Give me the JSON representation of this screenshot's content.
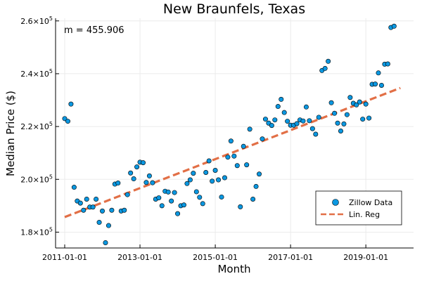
{
  "chart_data": {
    "type": "scatter",
    "title": "New Braunfels, Texas",
    "xlabel": "Month",
    "ylabel": "Median Price ($)",
    "annotation": "m = 455.906",
    "x_start": "2011-01",
    "x_end_month_index": 108,
    "xticks": [
      {
        "label": "2011-01-01",
        "month": 0
      },
      {
        "label": "2013-01-01",
        "month": 24
      },
      {
        "label": "2015-01-01",
        "month": 48
      },
      {
        "label": "2017-01-01",
        "month": 72
      },
      {
        "label": "2019-01-01",
        "month": 96
      }
    ],
    "ylim": [
      174000,
      261000
    ],
    "yticks": [
      {
        "value": 180000,
        "mantissa": "1.8",
        "exp": "5"
      },
      {
        "value": 200000,
        "mantissa": "2.0",
        "exp": "5"
      },
      {
        "value": 220000,
        "mantissa": "2.2",
        "exp": "5"
      },
      {
        "value": 240000,
        "mantissa": "2.4",
        "exp": "5"
      },
      {
        "value": 260000,
        "mantissa": "2.6",
        "exp": "5"
      }
    ],
    "grid": true,
    "legend_position": "bottom-right",
    "series": [
      {
        "name": "Zillow Data",
        "kind": "scatter",
        "color": "#0b97e0",
        "x": [
          "2011-01",
          "2011-02",
          "2011-03",
          "2011-04",
          "2011-05",
          "2011-06",
          "2011-07",
          "2011-08",
          "2011-09",
          "2011-10",
          "2011-11",
          "2011-12",
          "2012-01",
          "2012-02",
          "2012-03",
          "2012-04",
          "2012-05",
          "2012-06",
          "2012-07",
          "2012-08",
          "2012-09",
          "2012-10",
          "2012-11",
          "2012-12",
          "2013-01",
          "2013-02",
          "2013-03",
          "2013-04",
          "2013-05",
          "2013-06",
          "2013-07",
          "2013-08",
          "2013-09",
          "2013-10",
          "2013-11",
          "2013-12",
          "2014-01",
          "2014-02",
          "2014-03",
          "2014-04",
          "2014-05",
          "2014-06",
          "2014-07",
          "2014-08",
          "2014-09",
          "2014-10",
          "2014-11",
          "2014-12",
          "2015-01",
          "2015-02",
          "2015-03",
          "2015-04",
          "2015-05",
          "2015-06",
          "2015-07",
          "2015-08",
          "2015-09",
          "2015-10",
          "2015-11",
          "2015-12",
          "2016-01",
          "2016-02",
          "2016-03",
          "2016-04",
          "2016-05",
          "2016-06",
          "2016-07",
          "2016-08",
          "2016-09",
          "2016-10",
          "2016-11",
          "2016-12",
          "2017-01",
          "2017-02",
          "2017-03",
          "2017-04",
          "2017-05",
          "2017-06",
          "2017-07",
          "2017-08",
          "2017-09",
          "2017-10",
          "2017-11",
          "2017-12",
          "2018-01",
          "2018-02",
          "2018-03",
          "2018-04",
          "2018-05",
          "2018-06",
          "2018-07",
          "2018-08",
          "2018-09",
          "2018-10",
          "2018-11",
          "2018-12",
          "2019-01",
          "2019-02",
          "2019-03",
          "2019-04",
          "2019-05",
          "2019-06",
          "2019-07",
          "2019-08",
          "2019-09",
          "2019-10",
          "2019-11",
          "2019-12"
        ],
        "y": [
          223000,
          222000,
          228500,
          197000,
          191800,
          191000,
          188300,
          192500,
          189500,
          189500,
          192500,
          183700,
          188000,
          176000,
          182500,
          188300,
          198200,
          198600,
          188000,
          188300,
          194200,
          202400,
          200200,
          204700,
          206500,
          206300,
          198800,
          201300,
          198700,
          192500,
          193000,
          190000,
          195500,
          195200,
          191800,
          195000,
          187000,
          190000,
          190300,
          198400,
          199800,
          202300,
          195300,
          193200,
          190800,
          202600,
          207000,
          199300,
          203400,
          199800,
          193300,
          200600,
          208400,
          214500,
          208800,
          205200,
          189600,
          212500,
          205500,
          219000,
          192500,
          197300,
          202000,
          215300,
          222800,
          221300,
          220400,
          222500,
          227600,
          230300,
          225300,
          222000,
          220500,
          220500,
          221100,
          222500,
          222100,
          227400,
          222200,
          219200,
          217100,
          223500,
          241200,
          242000,
          244700,
          229000,
          225000,
          221300,
          218300,
          221000,
          224500,
          231000,
          228800,
          228200,
          229300,
          222800,
          228500,
          223200,
          236000,
          236100,
          240300,
          235600,
          243600,
          243700,
          257500,
          258000,
          null,
          null
        ]
      },
      {
        "name": "Lin. Reg",
        "kind": "line",
        "color": "#e26f46",
        "slope_per_month": 455.906,
        "x": [
          "2011-01",
          "2019-12"
        ],
        "y": [
          185700,
          234600
        ]
      }
    ]
  }
}
